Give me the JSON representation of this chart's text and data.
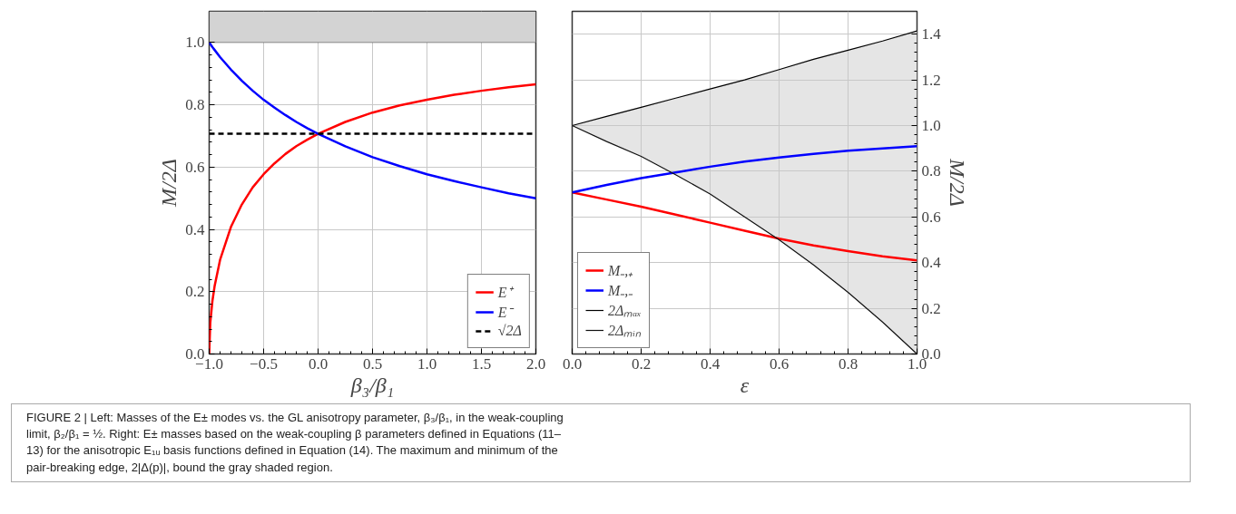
{
  "chart_data": [
    {
      "type": "line",
      "xlabel": "β₃/β₁",
      "ylabel": "M/2Δ",
      "x": [
        -1,
        -0.99,
        -0.97,
        -0.95,
        -0.9,
        -0.8,
        -0.7,
        -0.6,
        -0.5,
        -0.4,
        -0.3,
        -0.2,
        -0.1,
        0,
        0.25,
        0.5,
        0.75,
        1,
        1.25,
        1.5,
        1.75,
        2
      ],
      "series": [
        {
          "name": "E⁺",
          "color": "#ff0000",
          "values": [
            0,
            0.1,
            0.171,
            0.218,
            0.302,
            0.408,
            0.48,
            0.535,
            0.577,
            0.612,
            0.642,
            0.667,
            0.688,
            0.707,
            0.745,
            0.775,
            0.798,
            0.816,
            0.832,
            0.845,
            0.856,
            0.866
          ]
        },
        {
          "name": "E⁻",
          "color": "#0000ff",
          "values": [
            1,
            0.995,
            0.985,
            0.976,
            0.953,
            0.913,
            0.877,
            0.845,
            0.816,
            0.791,
            0.767,
            0.745,
            0.725,
            0.707,
            0.667,
            0.632,
            0.603,
            0.577,
            0.555,
            0.535,
            0.516,
            0.5
          ]
        },
        {
          "name": "√2Δ",
          "color": "#000000",
          "line_style": "dashed",
          "x": [
            -1,
            2
          ],
          "values": [
            0.707,
            0.707
          ]
        }
      ],
      "bands": [
        {
          "axis": "y",
          "from": 1.0,
          "to": 1.1,
          "color": "#d3d3d3"
        }
      ],
      "xlim": [
        -1,
        2
      ],
      "ylim": [
        0,
        1.1
      ],
      "xticks": [
        {
          "value": -1,
          "label": "−1.0"
        },
        {
          "value": -0.5,
          "label": "−0.5"
        },
        {
          "value": 0,
          "label": "0.0"
        },
        0.5,
        {
          "value": 1,
          "label": "1.0"
        },
        1.5,
        {
          "value": 2,
          "label": "2.0"
        }
      ],
      "yticks": [
        {
          "value": 0,
          "label": "0.0"
        },
        0.2,
        0.4,
        0.6,
        0.8,
        {
          "value": 1,
          "label": "1.0"
        }
      ],
      "grid": true,
      "legend": "bottom right",
      "annotations": [
        "FIGURE 2 | Left: Masses of the E± modes vs. the GL anisotropy parameter, β₃/β₁, in the weak-coupling limit, β₂/β₁ = ½. Right: E± masses based on the weak-coupling β parameters defined in Equations (11–13) for the anisotropic E₁ᵤ basis functions defined in Equation (14). The maximum and minimum of the pair-breaking edge, 2|Δ(p)|, bound the gray shaded region."
      ]
    },
    {
      "type": "line",
      "xlabel": "ε",
      "y2label": "M/2Δ",
      "x": [
        0,
        0.1,
        0.2,
        0.3,
        0.4,
        0.5,
        0.6,
        0.7,
        0.8,
        0.9,
        1.0
      ],
      "series": [
        {
          "name": "M₋,₊",
          "color": "#ff0000",
          "axis": "y2",
          "values": [
            0.707,
            0.676,
            0.645,
            0.61,
            0.575,
            0.54,
            0.505,
            0.475,
            0.45,
            0.428,
            0.41
          ]
        },
        {
          "name": "M₋,₋",
          "color": "#0000ff",
          "axis": "y2",
          "values": [
            0.707,
            0.74,
            0.77,
            0.795,
            0.82,
            0.842,
            0.86,
            0.876,
            0.89,
            0.9,
            0.91
          ]
        },
        {
          "name": "2Δₘₐₓ",
          "color": "#000000",
          "axis": "y2",
          "values": [
            1,
            1.04,
            1.08,
            1.12,
            1.16,
            1.2,
            1.245,
            1.29,
            1.33,
            1.37,
            1.414
          ],
          "lower": [
            1,
            0.93,
            0.865,
            0.785,
            0.7,
            0.6,
            0.5,
            0.39,
            0.27,
            0.14,
            0
          ],
          "upper": [
            1,
            1.04,
            1.08,
            1.12,
            1.16,
            1.2,
            1.245,
            1.29,
            1.33,
            1.37,
            1.414
          ]
        },
        {
          "name": "2Δₘᵢₙ",
          "color": "#111111",
          "axis": "y2",
          "values": [
            1,
            0.93,
            0.865,
            0.785,
            0.7,
            0.6,
            0.5,
            0.39,
            0.27,
            0.14,
            0
          ]
        }
      ],
      "xlim": [
        0,
        1
      ],
      "y2lim": [
        0,
        1.5
      ],
      "xticks": [
        {
          "value": 0,
          "label": "0.0"
        },
        0.2,
        0.4,
        0.6,
        0.8,
        {
          "value": 1,
          "label": "1.0"
        }
      ],
      "y2ticks": [
        {
          "value": 0,
          "label": "0.0"
        },
        0.2,
        0.4,
        0.6,
        0.8,
        {
          "value": 1,
          "label": "1.0"
        },
        1.2,
        1.4
      ],
      "grid": true,
      "legend": "bottom left"
    }
  ]
}
